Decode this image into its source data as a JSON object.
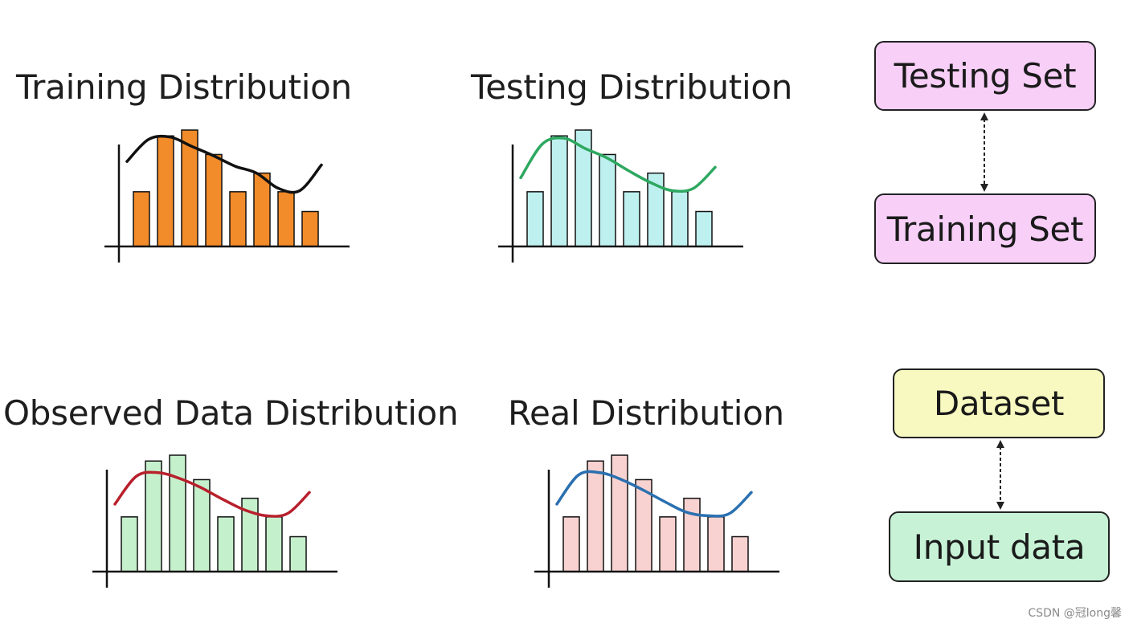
{
  "panels": [
    {
      "title": "Training Distribution",
      "bar_color": "#f28b29",
      "curve_color": "#111111",
      "bar_heights": [
        0.47,
        0.95,
        1.0,
        0.79,
        0.47,
        0.63,
        0.47,
        0.3
      ],
      "curve": [
        0.73,
        0.92,
        0.94,
        0.86,
        0.78,
        0.69,
        0.63,
        0.5,
        0.48,
        0.7
      ]
    },
    {
      "title": "Testing Distribution",
      "bar_color": "#bff0f0",
      "curve_color": "#2ea860",
      "bar_heights": [
        0.47,
        0.95,
        1.0,
        0.79,
        0.47,
        0.63,
        0.47,
        0.3
      ],
      "curve": [
        0.59,
        0.88,
        0.93,
        0.84,
        0.76,
        0.65,
        0.55,
        0.48,
        0.5,
        0.68
      ]
    },
    {
      "title": "Observed Data Distribution",
      "bar_color": "#c5f0cc",
      "curve_color": "#b8202c",
      "bar_heights": [
        0.47,
        0.95,
        1.0,
        0.79,
        0.47,
        0.63,
        0.47,
        0.3
      ],
      "curve": [
        0.58,
        0.82,
        0.85,
        0.8,
        0.72,
        0.62,
        0.53,
        0.48,
        0.5,
        0.68
      ]
    },
    {
      "title": "Real Distribution",
      "bar_color": "#f8d2d0",
      "curve_color": "#2a70b0",
      "bar_heights": [
        0.47,
        0.95,
        1.0,
        0.79,
        0.47,
        0.63,
        0.47,
        0.3
      ],
      "curve": [
        0.58,
        0.83,
        0.85,
        0.79,
        0.7,
        0.6,
        0.51,
        0.48,
        0.5,
        0.68
      ]
    }
  ],
  "boxes": {
    "testing_set": {
      "label": "Testing Set",
      "color": "#f7cff7"
    },
    "training_set": {
      "label": "Training Set",
      "color": "#f7cff7"
    },
    "dataset": {
      "label": "Dataset",
      "color": "#f8f9c0"
    },
    "input_data": {
      "label": "Input data",
      "color": "#c7f2d6"
    }
  },
  "watermark": "CSDN @冠long馨"
}
